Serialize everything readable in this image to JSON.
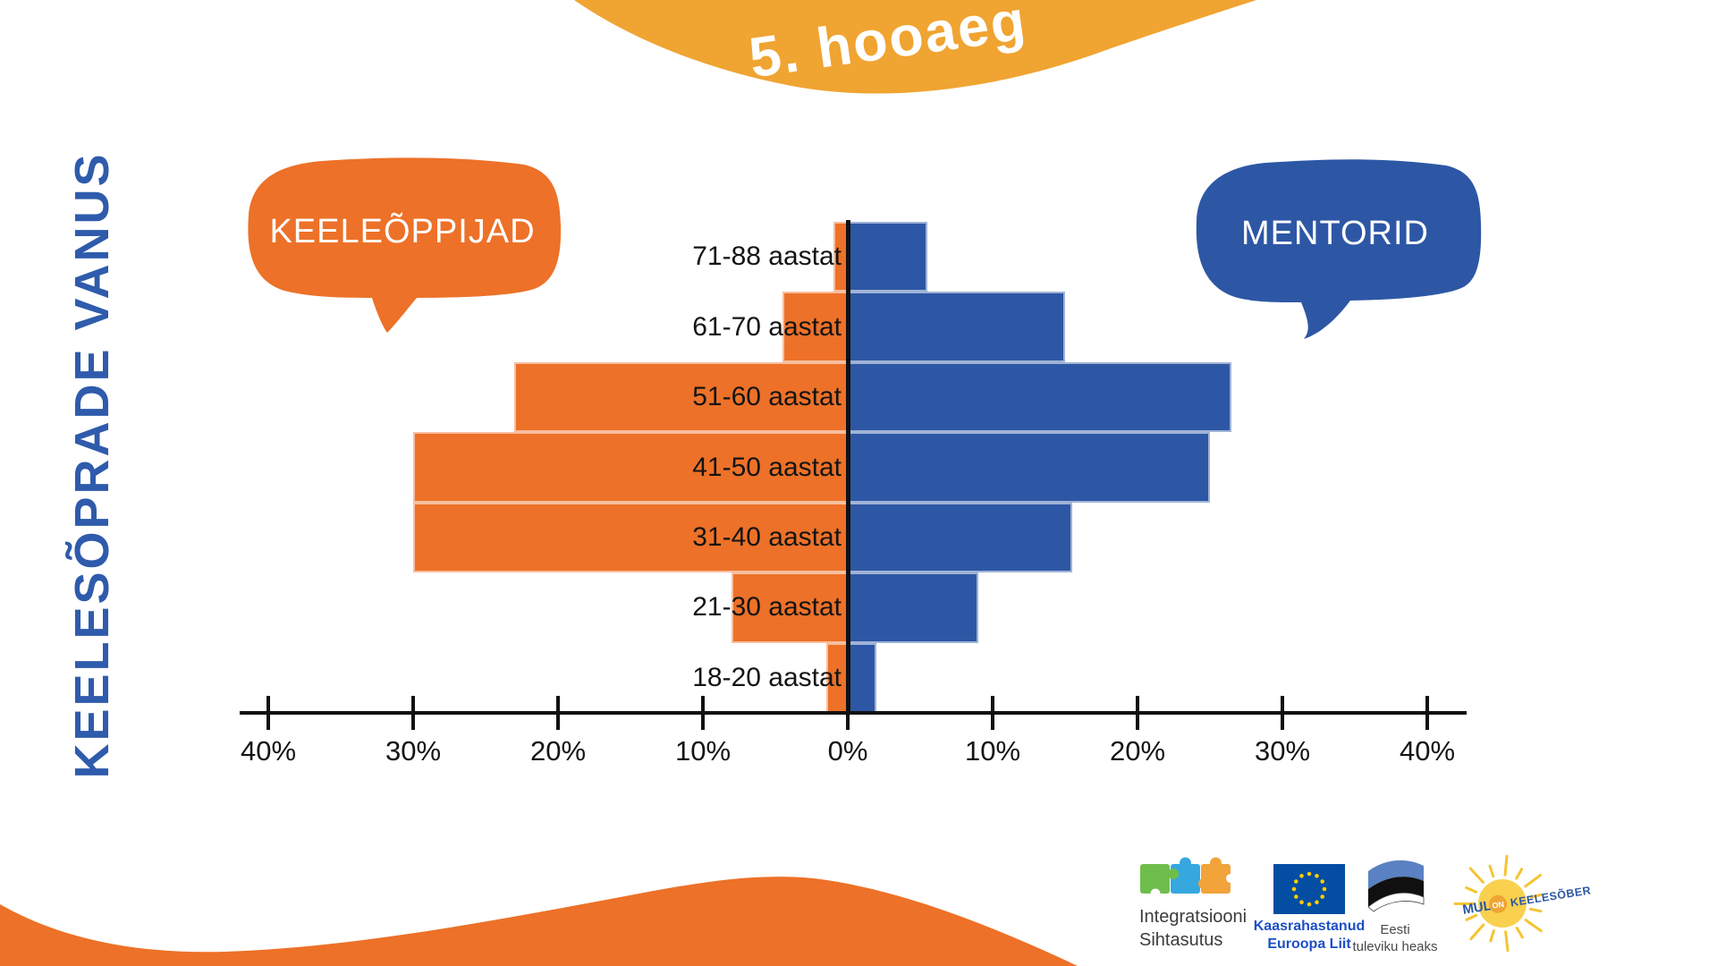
{
  "banner": {
    "title": "5. hooaeg"
  },
  "page_title": "KEELESÕPRADE VANUS",
  "bubbles": {
    "left": "KEELEÕPPIJAD",
    "right": "MENTORID"
  },
  "colors": {
    "orange": "#ED7128",
    "amber": "#F0A431",
    "blue": "#2D57A5",
    "title_blue": "#2F5BAC",
    "axis_black": "#111111"
  },
  "chart_data": {
    "type": "bar",
    "variant": "population-pyramid",
    "title": "KEELESÕPRADE VANUS",
    "categories": [
      "71-88 aastat",
      "61-70 aastat",
      "51-60 aastat",
      "41-50 aastat",
      "31-40 aastat",
      "21-30 aastat",
      "18-20 aastat"
    ],
    "series": [
      {
        "name": "KEELEÕPPIJAD",
        "side": "left",
        "color": "#ED7128",
        "values": [
          1,
          4.5,
          23,
          30,
          30,
          8,
          1.5
        ]
      },
      {
        "name": "MENTORID",
        "side": "right",
        "color": "#2D57A5",
        "values": [
          5.5,
          15,
          26.5,
          25,
          15.5,
          9,
          2
        ]
      }
    ],
    "x_axis": {
      "unit": "%",
      "range": [
        -40,
        40
      ],
      "tick_values": [
        -40,
        -30,
        -20,
        -10,
        0,
        10,
        20,
        30,
        40
      ],
      "tick_labels": [
        "40%",
        "30%",
        "20%",
        "10%",
        "0%",
        "10%",
        "20%",
        "30%",
        "40%"
      ]
    },
    "grid": false,
    "legend": "speech-bubbles"
  },
  "footer": {
    "logos": [
      {
        "name": "integratsiooni-sihtasutus",
        "text_lines": [
          "Integratsiooni",
          "Sihtasutus"
        ]
      },
      {
        "name": "euroopa-liit",
        "text_lines": [
          "Kaasrahastanud",
          "Euroopa Liit"
        ]
      },
      {
        "name": "eesti-lipp",
        "text_lines": [
          "Eesti",
          "tuleviku heaks"
        ]
      },
      {
        "name": "mul-on-keelesober",
        "text_parts": [
          "MUL",
          "ON",
          "KEELESÕBER"
        ]
      }
    ]
  }
}
